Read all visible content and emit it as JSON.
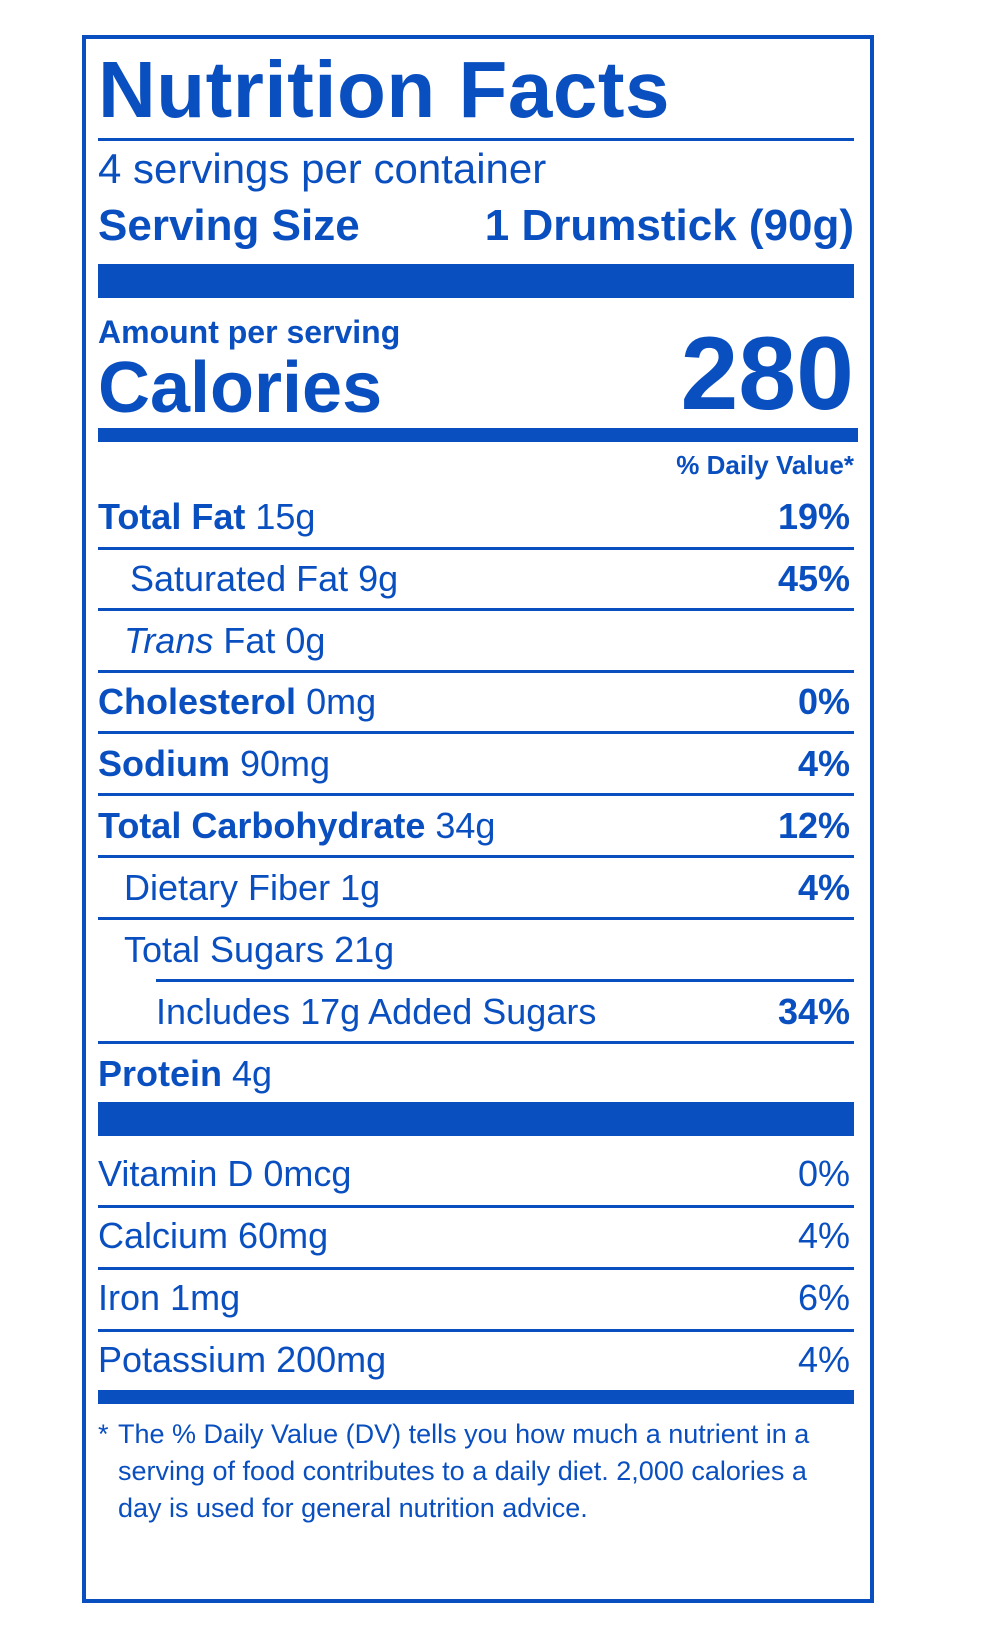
{
  "label": {
    "title": "Nutrition Facts",
    "servings_per_container": "4 servings per container",
    "serving_size_label": "Serving Size",
    "serving_size_value": "1 Drumstick (90g)",
    "amount_per_serving": "Amount per serving",
    "calories_label": "Calories",
    "calories_value": "280",
    "daily_value_header": "% Daily Value*"
  },
  "nutrients": [
    {
      "name": "Total Fat",
      "amount": "15g",
      "dv": "19%"
    },
    {
      "name": "Saturated Fat",
      "amount": "9g",
      "dv": "45%"
    },
    {
      "name_italic": "Trans",
      "name": "Fat",
      "amount": "0g",
      "dv": ""
    },
    {
      "name": "Cholesterol",
      "amount": "0mg",
      "dv": "0%"
    },
    {
      "name": "Sodium",
      "amount": "90mg",
      "dv": "4%"
    },
    {
      "name": "Total Carbohydrate",
      "amount": "34g",
      "dv": "12%"
    },
    {
      "name": "Dietary Fiber",
      "amount": "1g",
      "dv": "4%"
    },
    {
      "name": "Total Sugars",
      "amount": "21g",
      "dv": ""
    },
    {
      "name": "Includes 17g Added Sugars",
      "amount": "",
      "dv": "34%"
    },
    {
      "name": "Protein",
      "amount": "4g",
      "dv": ""
    }
  ],
  "vitamins": [
    {
      "name": "Vitamin D",
      "amount": "0mcg",
      "dv": "0%"
    },
    {
      "name": "Calcium",
      "amount": "60mg",
      "dv": "4%"
    },
    {
      "name": "Iron",
      "amount": "1mg",
      "dv": "6%"
    },
    {
      "name": "Potassium",
      "amount": "200mg",
      "dv": "4%"
    }
  ],
  "footnote": {
    "star": "*",
    "text": "The % Daily Value (DV) tells you how much a nutrient in a serving of food contributes to a daily diet. 2,000 calories a day is used for general nutrition advice."
  },
  "colors": {
    "ink": "#0a4fc0",
    "background": "#ffffff"
  }
}
